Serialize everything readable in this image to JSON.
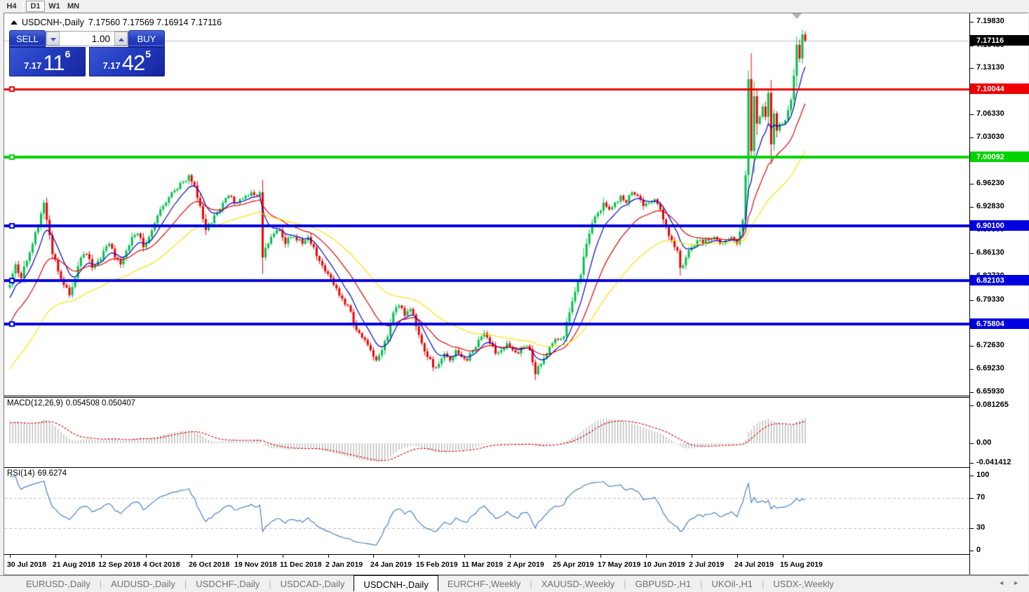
{
  "toolbar": {
    "timeframes": [
      {
        "label": "H4",
        "active": false
      },
      {
        "label": "D1",
        "active": true
      },
      {
        "label": "W1",
        "active": false
      },
      {
        "label": "MN",
        "active": false
      }
    ]
  },
  "window": {
    "title": "USDCNH-,Daily",
    "ohlc": "7.17560 7.17569 7.16914 7.17116"
  },
  "one_click": {
    "sell_label": "SELL",
    "buy_label": "BUY",
    "volume": "1.00",
    "bid": {
      "small": "7.17",
      "big": "11",
      "sup": "6"
    },
    "ask": {
      "small": "7.17",
      "big": "42",
      "sup": "5"
    }
  },
  "chart_data": {
    "type": "candlestick",
    "symbol": "USDCNH-",
    "period": "Daily",
    "quote": {
      "open": 7.1756,
      "high": 7.17569,
      "low": 7.16914,
      "close": 7.17116
    },
    "price_axis": {
      "ticks": [
        "7.19830",
        "7.16430",
        "7.13130",
        "7.09730",
        "7.06330",
        "7.03030",
        "6.99630",
        "6.96230",
        "6.92830",
        "6.89530",
        "6.86130",
        "6.82730",
        "6.79330",
        "6.75930",
        "6.72630",
        "6.69230",
        "6.65930"
      ],
      "current": {
        "text": "7.17116",
        "price": 7.17116,
        "line_color": "#c0c0c0",
        "badge_color": "#000000"
      }
    },
    "hlines": [
      {
        "text": "7.10044",
        "price": 7.10044,
        "color": "#ee0000",
        "thickness": 3
      },
      {
        "text": "7.00092",
        "price": 7.00092,
        "color": "#00d300",
        "thickness": 4
      },
      {
        "text": "6.90100",
        "price": 6.901,
        "color": "#0000e0",
        "thickness": 4
      },
      {
        "text": "6.82103",
        "price": 6.82103,
        "color": "#0000e0",
        "thickness": 4
      },
      {
        "text": "6.75804",
        "price": 6.75804,
        "color": "#0000e0",
        "thickness": 4
      }
    ],
    "x_axis": {
      "labels": [
        "30 Jul 2018",
        "21 Aug 2018",
        "12 Sep 2018",
        "4 Oct 2018",
        "26 Oct 2018",
        "19 Nov 2018",
        "11 Dec 2018",
        "2 Jan 2019",
        "24 Jan 2019",
        "15 Feb 2019",
        "11 Mar 2019",
        "2 Apr 2019",
        "25 Apr 2019",
        "17 May 2019",
        "10 Jun 2019",
        "2 Jul 2019",
        "24 Jul 2019",
        "15 Aug 2019"
      ],
      "bars_per_label": 16,
      "total_bars": 281
    },
    "candle_colors": {
      "bull": "#00bf4a",
      "bear": "#ef0000"
    },
    "price_path": {
      "pre_anchors": [
        [
          -48,
          6.5
        ],
        [
          -32,
          6.6
        ],
        [
          -16,
          6.72
        ],
        [
          -6,
          6.79
        ]
      ],
      "anchors": [
        [
          0,
          6.815
        ],
        [
          2,
          6.845
        ],
        [
          4,
          6.825
        ],
        [
          6,
          6.85
        ],
        [
          8,
          6.875
        ],
        [
          10,
          6.9
        ],
        [
          12,
          6.935
        ],
        [
          13,
          6.91
        ],
        [
          15,
          6.86
        ],
        [
          17,
          6.835
        ],
        [
          19,
          6.815
        ],
        [
          21,
          6.8
        ],
        [
          23,
          6.825
        ],
        [
          25,
          6.855
        ],
        [
          27,
          6.86
        ],
        [
          29,
          6.84
        ],
        [
          31,
          6.85
        ],
        [
          33,
          6.865
        ],
        [
          35,
          6.875
        ],
        [
          37,
          6.855
        ],
        [
          39,
          6.845
        ],
        [
          41,
          6.865
        ],
        [
          43,
          6.885
        ],
        [
          45,
          6.89
        ],
        [
          47,
          6.87
        ],
        [
          49,
          6.885
        ],
        [
          51,
          6.905
        ],
        [
          53,
          6.925
        ],
        [
          55,
          6.935
        ],
        [
          57,
          6.95
        ],
        [
          59,
          6.955
        ],
        [
          61,
          6.965
        ],
        [
          63,
          6.975
        ],
        [
          65,
          6.96
        ],
        [
          67,
          6.93
        ],
        [
          69,
          6.895
        ],
        [
          71,
          6.905
        ],
        [
          73,
          6.92
        ],
        [
          75,
          6.935
        ],
        [
          77,
          6.945
        ],
        [
          79,
          6.935
        ],
        [
          81,
          6.94
        ],
        [
          83,
          6.945
        ],
        [
          85,
          6.95
        ],
        [
          87,
          6.945
        ],
        [
          88,
          6.95
        ],
        [
          89,
          6.855
        ],
        [
          91,
          6.875
        ],
        [
          93,
          6.89
        ],
        [
          95,
          6.895
        ],
        [
          97,
          6.875
        ],
        [
          99,
          6.885
        ],
        [
          101,
          6.88
        ],
        [
          103,
          6.875
        ],
        [
          105,
          6.885
        ],
        [
          107,
          6.87
        ],
        [
          109,
          6.85
        ],
        [
          111,
          6.835
        ],
        [
          113,
          6.825
        ],
        [
          115,
          6.81
        ],
        [
          117,
          6.795
        ],
        [
          119,
          6.785
        ],
        [
          121,
          6.76
        ],
        [
          123,
          6.745
        ],
        [
          125,
          6.735
        ],
        [
          127,
          6.72
        ],
        [
          129,
          6.705
        ],
        [
          131,
          6.72
        ],
        [
          133,
          6.74
        ],
        [
          135,
          6.775
        ],
        [
          137,
          6.785
        ],
        [
          139,
          6.77
        ],
        [
          141,
          6.78
        ],
        [
          143,
          6.755
        ],
        [
          145,
          6.73
        ],
        [
          147,
          6.71
        ],
        [
          149,
          6.695
        ],
        [
          151,
          6.7
        ],
        [
          153,
          6.715
        ],
        [
          155,
          6.705
        ],
        [
          157,
          6.72
        ],
        [
          159,
          6.71
        ],
        [
          161,
          6.705
        ],
        [
          163,
          6.72
        ],
        [
          165,
          6.735
        ],
        [
          167,
          6.745
        ],
        [
          169,
          6.73
        ],
        [
          171,
          6.715
        ],
        [
          173,
          6.72
        ],
        [
          175,
          6.73
        ],
        [
          177,
          6.72
        ],
        [
          179,
          6.715
        ],
        [
          181,
          6.725
        ],
        [
          183,
          6.72
        ],
        [
          185,
          6.685
        ],
        [
          187,
          6.7
        ],
        [
          189,
          6.715
        ],
        [
          191,
          6.73
        ],
        [
          193,
          6.735
        ],
        [
          195,
          6.74
        ],
        [
          197,
          6.775
        ],
        [
          199,
          6.805
        ],
        [
          201,
          6.83
        ],
        [
          203,
          6.875
        ],
        [
          205,
          6.905
        ],
        [
          207,
          6.92
        ],
        [
          209,
          6.935
        ],
        [
          211,
          6.925
        ],
        [
          213,
          6.935
        ],
        [
          215,
          6.945
        ],
        [
          217,
          6.935
        ],
        [
          219,
          6.95
        ],
        [
          221,
          6.945
        ],
        [
          223,
          6.93
        ],
        [
          225,
          6.935
        ],
        [
          227,
          6.94
        ],
        [
          229,
          6.925
        ],
        [
          231,
          6.9
        ],
        [
          233,
          6.88
        ],
        [
          235,
          6.865
        ],
        [
          236,
          6.84
        ],
        [
          238,
          6.855
        ],
        [
          240,
          6.87
        ],
        [
          242,
          6.88
        ],
        [
          244,
          6.875
        ],
        [
          246,
          6.88
        ],
        [
          248,
          6.885
        ],
        [
          250,
          6.875
        ],
        [
          252,
          6.88
        ],
        [
          254,
          6.885
        ],
        [
          256,
          6.875
        ],
        [
          258,
          6.91
        ],
        [
          259,
          6.975
        ],
        [
          260,
          7.115
        ],
        [
          261,
          7.01
        ],
        [
          262,
          7.09
        ],
        [
          263,
          7.05
        ],
        [
          264,
          7.06
        ],
        [
          265,
          7.075
        ],
        [
          266,
          7.06
        ],
        [
          267,
          7.095
        ],
        [
          268,
          7.02
        ],
        [
          269,
          7.065
        ],
        [
          270,
          7.04
        ],
        [
          271,
          7.05
        ],
        [
          272,
          7.05
        ],
        [
          273,
          7.055
        ],
        [
          274,
          7.07
        ],
        [
          275,
          7.085
        ],
        [
          276,
          7.12
        ],
        [
          277,
          7.165
        ],
        [
          278,
          7.145
        ],
        [
          279,
          7.18
        ],
        [
          280,
          7.17116
        ]
      ]
    },
    "moving_averages": [
      {
        "period": 8,
        "color": "#0000cc"
      },
      {
        "period": 20,
        "color": "#dd0000"
      },
      {
        "period": 45,
        "color": "#ffe000"
      }
    ],
    "indicators": {
      "macd": {
        "name": "MACD(12,26,9)",
        "values": "0.054508 0.050407",
        "fast": 12,
        "slow": 26,
        "signal": 9,
        "axis": [
          "0.081265",
          "0.00",
          "-0.041412"
        ],
        "axis_values": [
          0.081265,
          0,
          -0.041412
        ],
        "hist_color": "#b0b0b0",
        "signal_color": "#dd0000"
      },
      "rsi": {
        "name": "RSI(14)",
        "value": "69.6274",
        "period": 14,
        "axis": [
          "100",
          "70",
          "30",
          "0"
        ],
        "axis_values": [
          100,
          70,
          30,
          0
        ],
        "levels": [
          70,
          30
        ],
        "color": "#4a7fc4"
      }
    }
  },
  "tabs": {
    "items": [
      "EURUSD-,Daily",
      "AUDUSD-,Daily",
      "USDCHF-,Daily",
      "USDCAD-,Daily",
      "USDCNH-,Daily",
      "EURCHF-,Weekly",
      "XAUUSD-,Weekly",
      "GBPUSD-,H1",
      "UKOil-,H1",
      "USDX-,Weekly"
    ],
    "active_index": 4
  }
}
